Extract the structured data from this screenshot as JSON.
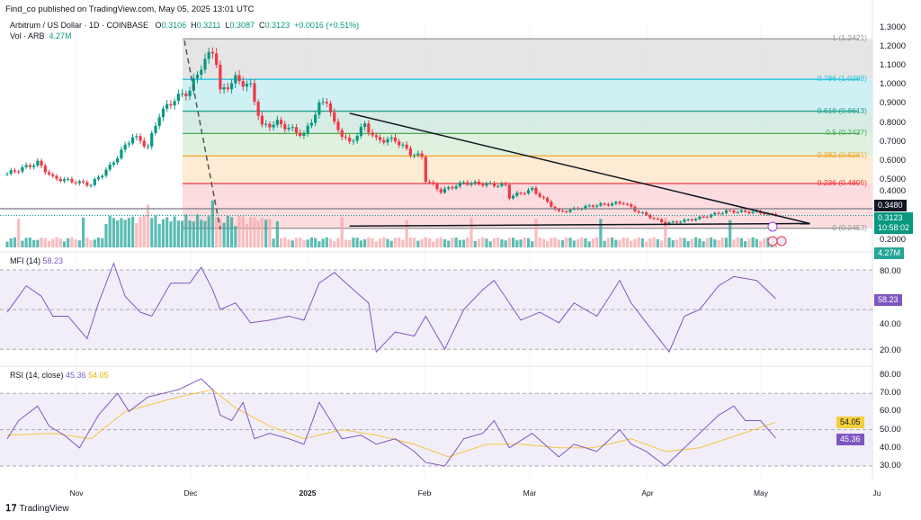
{
  "header": {
    "publisher": "Find_co published on TradingView.com, May 05, 2025 13:01 UTC"
  },
  "legend": {
    "symbol": "Arbitrum / US Dollar · 1D · COINBASE",
    "o_label": "O",
    "o": "0.3106",
    "h_label": "H",
    "h": "0.3211",
    "l_label": "L",
    "l": "0.3087",
    "c_label": "C",
    "c": "0.3123",
    "change": "+0.0016 (+0.51%)",
    "vol_label": "Vol · ARB",
    "vol": "4.27M"
  },
  "price_axis": [
    "1.3000",
    "1.2000",
    "1.1000",
    "1.0000",
    "0.9000",
    "0.8000",
    "0.7000",
    "0.6000",
    "0.5000",
    "0.4000",
    "0.2000"
  ],
  "tags": {
    "line": "0.3480",
    "price": "0.3123",
    "countdown": "10:58:02",
    "volume": "4.27M"
  },
  "fib_labels": [
    "1 (1.2421)",
    "0.786 (1.0288)",
    "0.618 (0.8613)",
    "0.5 (0.7437)",
    "0.382 (0.6261)",
    "0.236 (0.4806)",
    "0 (0.2453)"
  ],
  "mfi": {
    "label": "MFI (14)",
    "value": "58.23",
    "axis": [
      "80.00",
      "40.00",
      "20.00"
    ]
  },
  "rsi": {
    "label": "RSI (14, close)",
    "value": "45.36",
    "ma": "54.05",
    "axis": [
      "80.00",
      "70.00",
      "60.00",
      "50.00",
      "40.00",
      "30.00"
    ]
  },
  "time_axis": [
    "Nov",
    "Dec",
    "2025",
    "Feb",
    "Mar",
    "Apr",
    "May",
    "Ju"
  ],
  "footer": {
    "brand": "TradingView"
  },
  "colors": {
    "up": "#089981",
    "down": "#f23645",
    "mfi": "#7e57c2",
    "rsi_ma": "#f5c542"
  },
  "chart_data": {
    "type": "candlestick",
    "title": "Arbitrum / US Dollar · 1D · COINBASE",
    "start_date": "2024-10-13",
    "x_unit": "days since start_date",
    "ylim": [
      0.2,
      1.3
    ],
    "close_anchors": [
      [
        0,
        0.532
      ],
      [
        8,
        0.59
      ],
      [
        12,
        0.51
      ],
      [
        22,
        0.475
      ],
      [
        27,
        0.57
      ],
      [
        33,
        0.73
      ],
      [
        37,
        0.675
      ],
      [
        40,
        0.845
      ],
      [
        44,
        0.925
      ],
      [
        48,
        0.97
      ],
      [
        51,
        1.1
      ],
      [
        54,
        1.18
      ],
      [
        55,
        1.12
      ],
      [
        56,
        0.96
      ],
      [
        60,
        1.03
      ],
      [
        64,
        0.99
      ],
      [
        67,
        0.78
      ],
      [
        71,
        0.8
      ],
      [
        78,
        0.735
      ],
      [
        82,
        0.89
      ],
      [
        84,
        0.92
      ],
      [
        86,
        0.79
      ],
      [
        90,
        0.69
      ],
      [
        94,
        0.79
      ],
      [
        97,
        0.71
      ],
      [
        102,
        0.71
      ],
      [
        106,
        0.64
      ],
      [
        109,
        0.62
      ],
      [
        110,
        0.5
      ],
      [
        114,
        0.44
      ],
      [
        120,
        0.485
      ],
      [
        131,
        0.47
      ],
      [
        132,
        0.41
      ],
      [
        138,
        0.45
      ],
      [
        145,
        0.33
      ],
      [
        154,
        0.365
      ],
      [
        162,
        0.38
      ],
      [
        165,
        0.34
      ],
      [
        173,
        0.27
      ],
      [
        181,
        0.295
      ],
      [
        189,
        0.335
      ],
      [
        197,
        0.33
      ],
      [
        202,
        0.3123
      ]
    ],
    "fib_levels": [
      [
        1,
        1.2421
      ],
      [
        0.786,
        1.0288
      ],
      [
        0.618,
        0.8613
      ],
      [
        0.5,
        0.7437
      ],
      [
        0.382,
        0.6261
      ],
      [
        0.236,
        0.4806
      ],
      [
        0,
        0.2453
      ]
    ],
    "horizontal_line": 0.348,
    "trendlines": [
      {
        "name": "descending resistance",
        "from": [
          90,
          0.85
        ],
        "to": [
          211,
          0.27
        ]
      },
      {
        "name": "support",
        "from": [
          90,
          0.257
        ],
        "to": [
          211,
          0.27
        ]
      }
    ],
    "mfi_anchors": [
      [
        0,
        48
      ],
      [
        5,
        68
      ],
      [
        9,
        60
      ],
      [
        12,
        45
      ],
      [
        16,
        45
      ],
      [
        21,
        28
      ],
      [
        24,
        55
      ],
      [
        28,
        85
      ],
      [
        31,
        60
      ],
      [
        35,
        48
      ],
      [
        38,
        45
      ],
      [
        43,
        70
      ],
      [
        48,
        70
      ],
      [
        51,
        82
      ],
      [
        54,
        65
      ],
      [
        56,
        50
      ],
      [
        60,
        55
      ],
      [
        64,
        40
      ],
      [
        69,
        42
      ],
      [
        74,
        45
      ],
      [
        78,
        42
      ],
      [
        82,
        70
      ],
      [
        86,
        78
      ],
      [
        91,
        65
      ],
      [
        95,
        55
      ],
      [
        97,
        18
      ],
      [
        102,
        33
      ],
      [
        107,
        30
      ],
      [
        110,
        45
      ],
      [
        115,
        20
      ],
      [
        120,
        50
      ],
      [
        125,
        65
      ],
      [
        128,
        72
      ],
      [
        132,
        55
      ],
      [
        135,
        42
      ],
      [
        140,
        48
      ],
      [
        145,
        40
      ],
      [
        149,
        55
      ],
      [
        155,
        45
      ],
      [
        161,
        72
      ],
      [
        164,
        55
      ],
      [
        168,
        40
      ],
      [
        174,
        18
      ],
      [
        178,
        45
      ],
      [
        182,
        50
      ],
      [
        187,
        68
      ],
      [
        191,
        75
      ],
      [
        197,
        72
      ],
      [
        202,
        58.23
      ]
    ],
    "rsi_anchors": [
      [
        0,
        45
      ],
      [
        3,
        55
      ],
      [
        8,
        63
      ],
      [
        11,
        52
      ],
      [
        15,
        47
      ],
      [
        19,
        40
      ],
      [
        24,
        58
      ],
      [
        29,
        70
      ],
      [
        32,
        60
      ],
      [
        37,
        68
      ],
      [
        41,
        70
      ],
      [
        45,
        72
      ],
      [
        51,
        78
      ],
      [
        54,
        72
      ],
      [
        56,
        58
      ],
      [
        59,
        55
      ],
      [
        62,
        65
      ],
      [
        65,
        45
      ],
      [
        69,
        48
      ],
      [
        74,
        45
      ],
      [
        78,
        42
      ],
      [
        82,
        65
      ],
      [
        85,
        55
      ],
      [
        88,
        45
      ],
      [
        93,
        47
      ],
      [
        97,
        42
      ],
      [
        102,
        45
      ],
      [
        107,
        38
      ],
      [
        110,
        32
      ],
      [
        115,
        30
      ],
      [
        120,
        45
      ],
      [
        125,
        48
      ],
      [
        128,
        55
      ],
      [
        132,
        40
      ],
      [
        138,
        48
      ],
      [
        145,
        35
      ],
      [
        149,
        42
      ],
      [
        155,
        38
      ],
      [
        161,
        50
      ],
      [
        164,
        42
      ],
      [
        168,
        38
      ],
      [
        173,
        30
      ],
      [
        178,
        40
      ],
      [
        182,
        48
      ],
      [
        187,
        58
      ],
      [
        191,
        63
      ],
      [
        194,
        55
      ],
      [
        198,
        55
      ],
      [
        202,
        45.36
      ]
    ],
    "rsi_ma_anchors": [
      [
        0,
        47
      ],
      [
        12,
        48
      ],
      [
        22,
        45
      ],
      [
        31,
        60
      ],
      [
        45,
        68
      ],
      [
        54,
        72
      ],
      [
        60,
        62
      ],
      [
        69,
        52
      ],
      [
        78,
        45
      ],
      [
        88,
        50
      ],
      [
        97,
        47
      ],
      [
        107,
        42
      ],
      [
        116,
        35
      ],
      [
        126,
        42
      ],
      [
        135,
        42
      ],
      [
        145,
        40
      ],
      [
        154,
        40
      ],
      [
        164,
        45
      ],
      [
        173,
        38
      ],
      [
        182,
        40
      ],
      [
        192,
        47
      ],
      [
        202,
        54.05
      ]
    ],
    "mfi_ylim": [
      10,
      90
    ],
    "rsi_ylim": [
      25,
      80
    ]
  }
}
